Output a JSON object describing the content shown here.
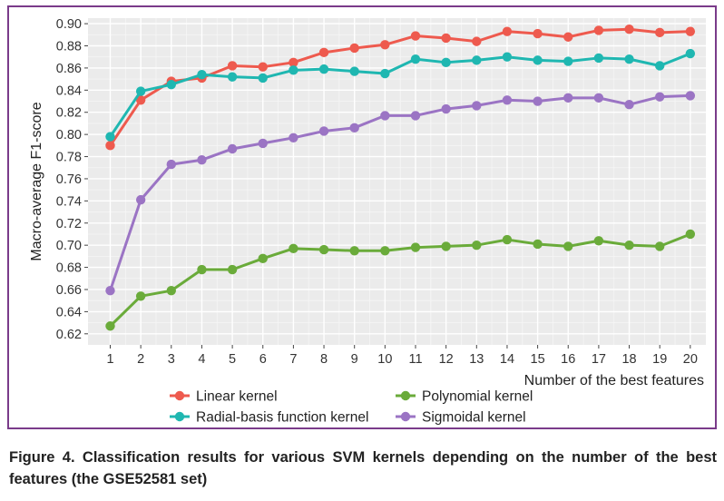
{
  "caption": "Figure 4. Classification results for various SVM kernels depending on the number of the best features (the GSE52581 set)",
  "chart_data": {
    "type": "line",
    "title": "",
    "xlabel": "Number of the best features",
    "ylabel": "Macro-average F1-score",
    "x": [
      1,
      2,
      3,
      4,
      5,
      6,
      7,
      8,
      9,
      10,
      11,
      12,
      13,
      14,
      15,
      16,
      17,
      18,
      19,
      20
    ],
    "ylim": [
      0.61,
      0.905
    ],
    "yticks": [
      0.62,
      0.64,
      0.66,
      0.68,
      0.7,
      0.72,
      0.74,
      0.76,
      0.78,
      0.8,
      0.82,
      0.84,
      0.86,
      0.88,
      0.9
    ],
    "ytick_labels": [
      "0.62",
      "0.64",
      "0.66",
      "0.68",
      "0.70",
      "0.72",
      "0.74",
      "0.76",
      "0.78",
      "0.80",
      "0.82",
      "0.84",
      "0.86",
      "0.88",
      "0.90"
    ],
    "grid": true,
    "legend_position": "bottom",
    "background": "#ebebeb",
    "series": [
      {
        "name": "Linear kernel",
        "color": "#ee5a4e",
        "values": [
          0.79,
          0.831,
          0.848,
          0.851,
          0.862,
          0.861,
          0.865,
          0.874,
          0.878,
          0.881,
          0.889,
          0.887,
          0.884,
          0.893,
          0.891,
          0.888,
          0.894,
          0.895,
          0.892,
          0.893
        ]
      },
      {
        "name": "Polynomial kernel",
        "color": "#6aab3a",
        "values": [
          0.627,
          0.654,
          0.659,
          0.678,
          0.678,
          0.688,
          0.697,
          0.696,
          0.695,
          0.695,
          0.698,
          0.699,
          0.7,
          0.705,
          0.701,
          0.699,
          0.704,
          0.7,
          0.699,
          0.71
        ]
      },
      {
        "name": "Radial-basis function kernel",
        "color": "#1fb7b1",
        "values": [
          0.798,
          0.839,
          0.845,
          0.854,
          0.852,
          0.851,
          0.858,
          0.859,
          0.857,
          0.855,
          0.868,
          0.865,
          0.867,
          0.87,
          0.867,
          0.866,
          0.869,
          0.868,
          0.862,
          0.873
        ]
      },
      {
        "name": "Sigmoidal kernel",
        "color": "#9b74c4",
        "values": [
          0.659,
          0.741,
          0.773,
          0.777,
          0.787,
          0.792,
          0.797,
          0.803,
          0.806,
          0.817,
          0.817,
          0.823,
          0.826,
          0.831,
          0.83,
          0.833,
          0.833,
          0.827,
          0.834,
          0.835
        ]
      }
    ]
  }
}
